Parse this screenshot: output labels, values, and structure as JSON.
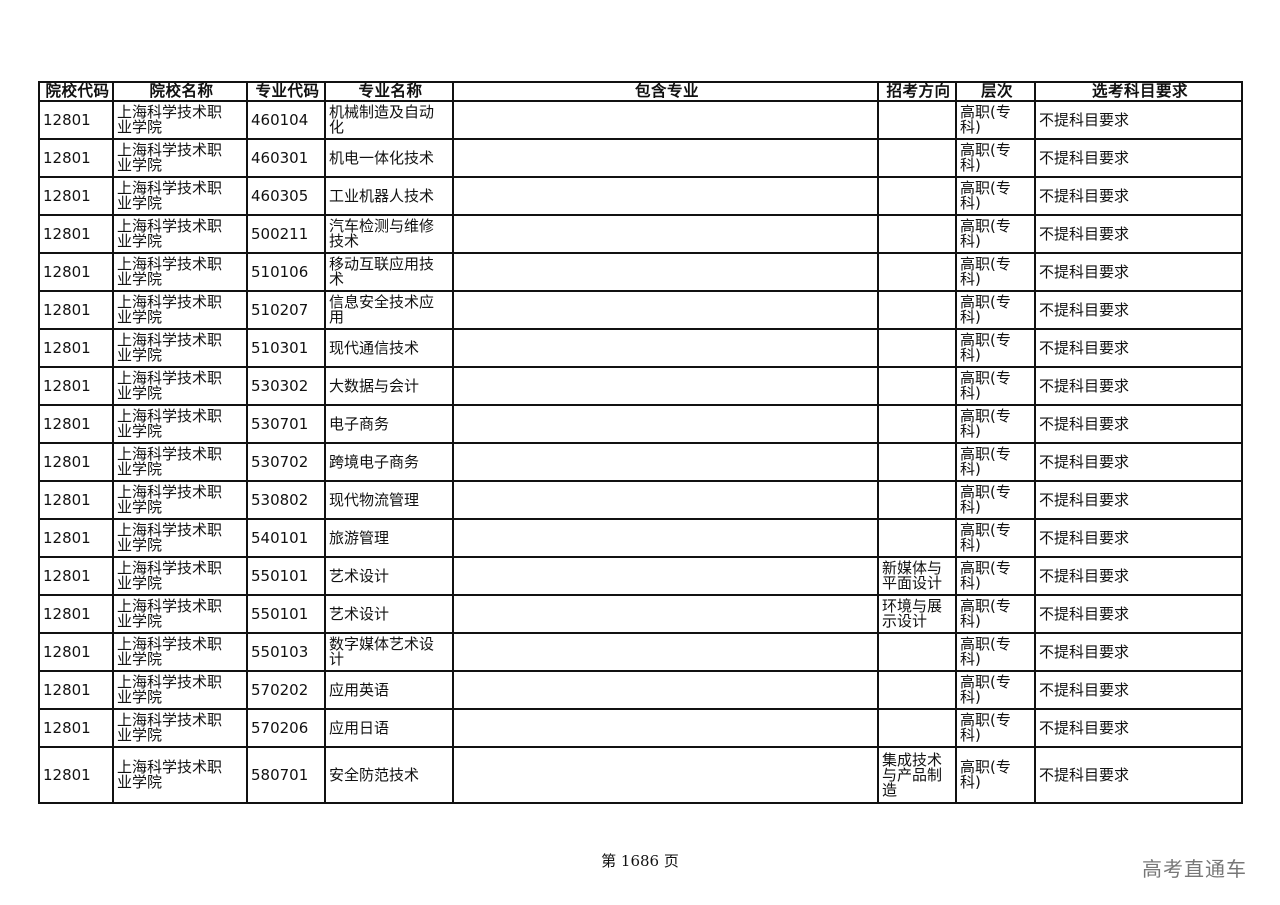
{
  "headers": [
    "院校代码",
    "院校名称",
    "专业代码",
    "专业名称",
    "包含专业",
    "招考方向",
    "层次",
    "选考科目要求"
  ],
  "rows": [
    {
      "school_code": "12801",
      "school_name": "上海科学技术职业学院",
      "major_code": "460104",
      "major_name": "机械制造及自动化",
      "included": "",
      "direction": "",
      "level": "高职(专科)",
      "requirement": "不提科目要求"
    },
    {
      "school_code": "12801",
      "school_name": "上海科学技术职业学院",
      "major_code": "460301",
      "major_name": "机电一体化技术",
      "included": "",
      "direction": "",
      "level": "高职(专科)",
      "requirement": "不提科目要求"
    },
    {
      "school_code": "12801",
      "school_name": "上海科学技术职业学院",
      "major_code": "460305",
      "major_name": "工业机器人技术",
      "included": "",
      "direction": "",
      "level": "高职(专科)",
      "requirement": "不提科目要求"
    },
    {
      "school_code": "12801",
      "school_name": "上海科学技术职业学院",
      "major_code": "500211",
      "major_name": "汽车检测与维修技术",
      "included": "",
      "direction": "",
      "level": "高职(专科)",
      "requirement": "不提科目要求"
    },
    {
      "school_code": "12801",
      "school_name": "上海科学技术职业学院",
      "major_code": "510106",
      "major_name": "移动互联应用技术",
      "included": "",
      "direction": "",
      "level": "高职(专科)",
      "requirement": "不提科目要求"
    },
    {
      "school_code": "12801",
      "school_name": "上海科学技术职业学院",
      "major_code": "510207",
      "major_name": "信息安全技术应用",
      "included": "",
      "direction": "",
      "level": "高职(专科)",
      "requirement": "不提科目要求"
    },
    {
      "school_code": "12801",
      "school_name": "上海科学技术职业学院",
      "major_code": "510301",
      "major_name": "现代通信技术",
      "included": "",
      "direction": "",
      "level": "高职(专科)",
      "requirement": "不提科目要求"
    },
    {
      "school_code": "12801",
      "school_name": "上海科学技术职业学院",
      "major_code": "530302",
      "major_name": "大数据与会计",
      "included": "",
      "direction": "",
      "level": "高职(专科)",
      "requirement": "不提科目要求"
    },
    {
      "school_code": "12801",
      "school_name": "上海科学技术职业学院",
      "major_code": "530701",
      "major_name": "电子商务",
      "included": "",
      "direction": "",
      "level": "高职(专科)",
      "requirement": "不提科目要求"
    },
    {
      "school_code": "12801",
      "school_name": "上海科学技术职业学院",
      "major_code": "530702",
      "major_name": "跨境电子商务",
      "included": "",
      "direction": "",
      "level": "高职(专科)",
      "requirement": "不提科目要求"
    },
    {
      "school_code": "12801",
      "school_name": "上海科学技术职业学院",
      "major_code": "530802",
      "major_name": "现代物流管理",
      "included": "",
      "direction": "",
      "level": "高职(专科)",
      "requirement": "不提科目要求"
    },
    {
      "school_code": "12801",
      "school_name": "上海科学技术职业学院",
      "major_code": "540101",
      "major_name": "旅游管理",
      "included": "",
      "direction": "",
      "level": "高职(专科)",
      "requirement": "不提科目要求"
    },
    {
      "school_code": "12801",
      "school_name": "上海科学技术职业学院",
      "major_code": "550101",
      "major_name": "艺术设计",
      "included": "",
      "direction": "新媒体与平面设计",
      "level": "高职(专科)",
      "requirement": "不提科目要求"
    },
    {
      "school_code": "12801",
      "school_name": "上海科学技术职业学院",
      "major_code": "550101",
      "major_name": "艺术设计",
      "included": "",
      "direction": "环境与展示设计",
      "level": "高职(专科)",
      "requirement": "不提科目要求"
    },
    {
      "school_code": "12801",
      "school_name": "上海科学技术职业学院",
      "major_code": "550103",
      "major_name": "数字媒体艺术设计",
      "included": "",
      "direction": "",
      "level": "高职(专科)",
      "requirement": "不提科目要求"
    },
    {
      "school_code": "12801",
      "school_name": "上海科学技术职业学院",
      "major_code": "570202",
      "major_name": "应用英语",
      "included": "",
      "direction": "",
      "level": "高职(专科)",
      "requirement": "不提科目要求"
    },
    {
      "school_code": "12801",
      "school_name": "上海科学技术职业学院",
      "major_code": "570206",
      "major_name": "应用日语",
      "included": "",
      "direction": "",
      "level": "高职(专科)",
      "requirement": "不提科目要求"
    },
    {
      "school_code": "12801",
      "school_name": "上海科学技术职业学院",
      "major_code": "580701",
      "major_name": "安全防范技术",
      "included": "",
      "direction": "集成技术与产品制造",
      "level": "高职(专科)",
      "requirement": "不提科目要求"
    }
  ],
  "footer": {
    "page_label": "第 1686 页"
  },
  "watermark": "高考直通车"
}
